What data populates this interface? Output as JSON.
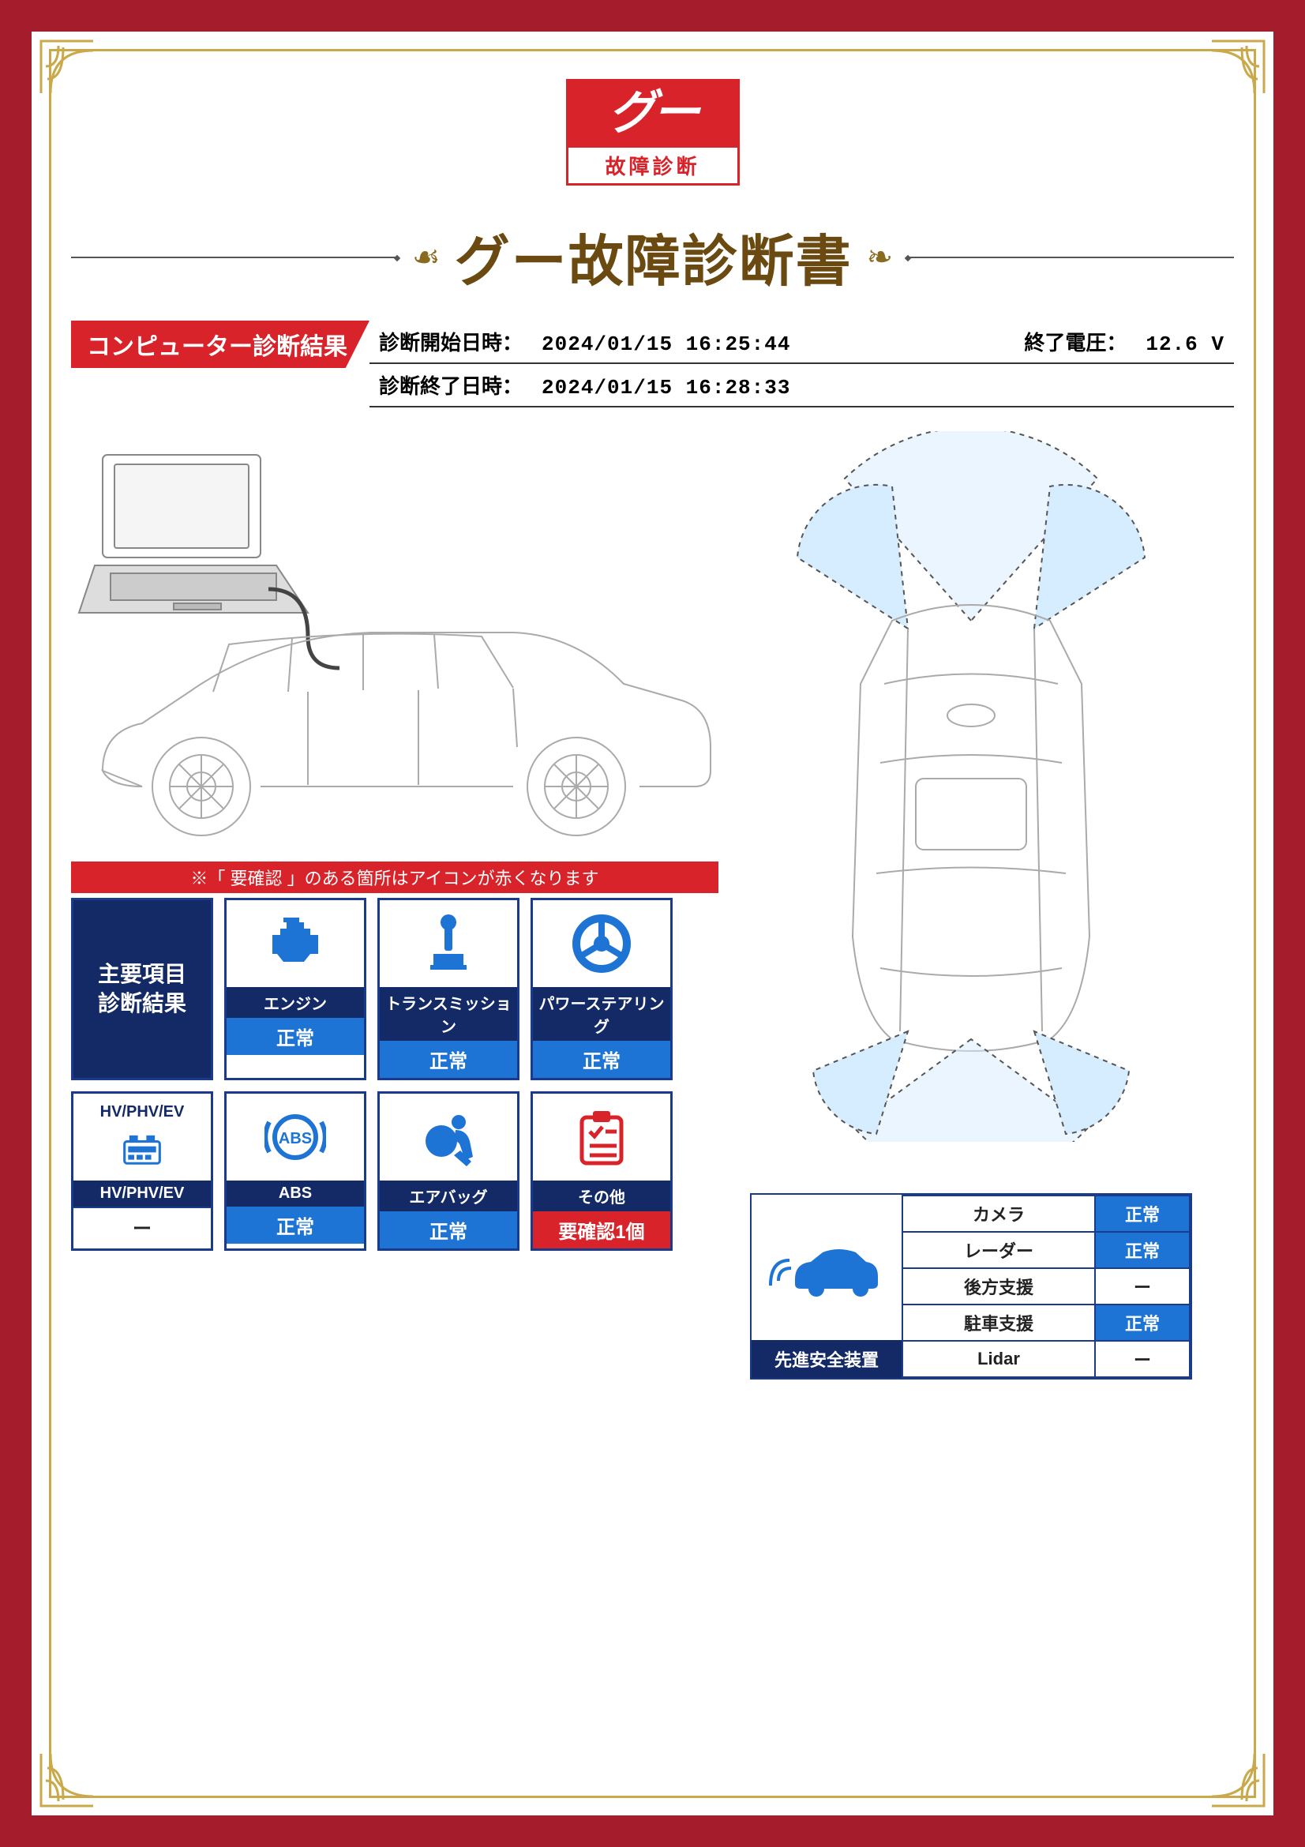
{
  "logo": {
    "top": "グー",
    "bottom": "故障診断"
  },
  "title": "グー故障診断書",
  "section_tag": "コンピューター診断結果",
  "info": {
    "start_label": "診断開始日時：",
    "start_value": "2024/01/15 16:25:44",
    "volt_label": "終了電圧：",
    "volt_value": "12.6 V",
    "end_label": "診断終了日時：",
    "end_value": "2024/01/15 16:28:33"
  },
  "diag_note": "※「 要確認 」のある箇所はアイコンが赤くなります",
  "diag_header": "主要項目\n診断結果",
  "diag_items": [
    {
      "label": "エンジン",
      "status": "正常",
      "status_class": "normal",
      "icon": "engine",
      "icon_color": "blue"
    },
    {
      "label": "トランスミッション",
      "status": "正常",
      "status_class": "normal",
      "icon": "gear",
      "icon_color": "blue"
    },
    {
      "label": "パワーステアリング",
      "status": "正常",
      "status_class": "normal",
      "icon": "steering",
      "icon_color": "blue"
    },
    {
      "label": "HV/PHV/EV",
      "status": "ー",
      "status_class": "none",
      "icon": "battery",
      "icon_color": "blue",
      "top_text": "HV/PHV/EV"
    },
    {
      "label": "ABS",
      "status": "正常",
      "status_class": "normal",
      "icon": "abs",
      "icon_color": "blue"
    },
    {
      "label": "エアバッグ",
      "status": "正常",
      "status_class": "normal",
      "icon": "airbag",
      "icon_color": "blue"
    },
    {
      "label": "その他",
      "status": "要確認1個",
      "status_class": "check",
      "icon": "clipboard",
      "icon_color": "red"
    }
  ],
  "safety": {
    "header": "先進安全装置",
    "rows": [
      {
        "name": "カメラ",
        "status": "正常",
        "class": "st-normal"
      },
      {
        "name": "レーダー",
        "status": "正常",
        "class": "st-normal"
      },
      {
        "name": "後方支援",
        "status": "ー",
        "class": "st-none"
      },
      {
        "name": "駐車支援",
        "status": "正常",
        "class": "st-normal"
      },
      {
        "name": "Lidar",
        "status": "ー",
        "class": "st-none"
      }
    ]
  },
  "colors": {
    "frame": "#a51c2c",
    "gold": "#c9a94a",
    "accent_red": "#d8232a",
    "navy": "#142a66",
    "blue": "#1d74d4",
    "title_brown": "#6b4a12"
  }
}
